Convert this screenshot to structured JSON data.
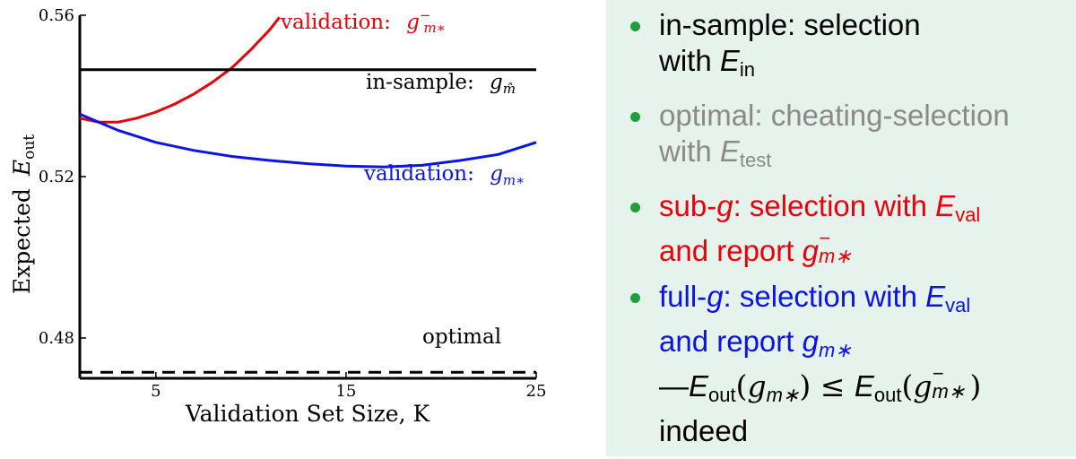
{
  "chart_data": {
    "type": "line",
    "title": "",
    "xlabel": "Validation Set Size, K",
    "ylabel": "Expected E_out",
    "xlim": [
      1,
      25
    ],
    "ylim": [
      0.47,
      0.56
    ],
    "xticks": [
      "5",
      "15",
      "25"
    ],
    "yticks": [
      "0.48",
      "0.52",
      "0.56"
    ],
    "series": [
      {
        "name": "validation: g⁻m*",
        "color": "#e8000b",
        "x": [
          1,
          2,
          3,
          4,
          5,
          6,
          7,
          8,
          9,
          10,
          11,
          11.5
        ],
        "y": [
          0.5345,
          0.5335,
          0.5335,
          0.5345,
          0.536,
          0.538,
          0.5405,
          0.5435,
          0.547,
          0.5515,
          0.5565,
          0.5595
        ]
      },
      {
        "name": "validation: gm*",
        "color": "#0a14e6",
        "x": [
          1,
          3,
          5,
          7,
          9,
          11,
          13,
          15,
          17,
          19,
          21,
          23,
          25
        ],
        "y": [
          0.5355,
          0.5315,
          0.5285,
          0.5265,
          0.525,
          0.524,
          0.5232,
          0.5226,
          0.5224,
          0.5228,
          0.524,
          0.5255,
          0.5285
        ]
      },
      {
        "name": "in-sample: gm̂",
        "color": "#000000",
        "x": [
          1,
          25
        ],
        "y": [
          0.5465,
          0.5465
        ]
      },
      {
        "name": "optimal",
        "color": "#000000",
        "dashed": true,
        "x": [
          1,
          25
        ],
        "y": [
          0.4715,
          0.4715
        ]
      }
    ],
    "annotations": {
      "validation_red": "validation:",
      "red_sym": "g",
      "red_sub": "m∗",
      "red_sup": "−",
      "in_sample": "in-sample:",
      "in_sample_sym": "g",
      "in_sample_sub": "m̂",
      "validation_blue": "validation:",
      "blue_sym": "g",
      "blue_sub": "m∗",
      "optimal": "optimal",
      "ylabel_main": "Expected",
      "ylabel_sym": "E",
      "ylabel_sub": "out"
    }
  },
  "panel": {
    "bullet_color": "#1f9e3a",
    "items": [
      {
        "color": "#000000",
        "a": "in-sample: selection",
        "b1": "with ",
        "b_sym": "E",
        "b_sub": "in"
      },
      {
        "color": "#8a8a8a",
        "a": "optimal: cheating-selection",
        "b1": "with ",
        "b_sym": "E",
        "b_sub": "test"
      },
      {
        "color": "#e8000b",
        "a1": "sub-",
        "a_g": "g",
        "a2": ": selection with ",
        "a_sym": "E",
        "a_sub": "val",
        "b1": "and report ",
        "b_sym": "g",
        "b_sup": "−",
        "b_sub": "m∗"
      },
      {
        "color": "#0a14e6",
        "a1": "full-",
        "a_g": "g",
        "a2": ": selection with ",
        "a_sym": "E",
        "a_sub": "val",
        "b1": "and report ",
        "b_sym": "g",
        "b_sub": "m∗"
      }
    ],
    "conclusion": {
      "dash": "—",
      "e1": "E",
      "e1_sub": "out",
      "arg1_open": "(",
      "g1": "g",
      "g1_sub": "m∗",
      "arg1_close": ")",
      "leq": " ≤ ",
      "e2": "E",
      "e2_sub": "out",
      "arg2_open": "(",
      "g2": "g",
      "g2_sup": "−",
      "g2_sub": "m∗",
      "arg2_close": ")",
      "last": "indeed"
    }
  }
}
